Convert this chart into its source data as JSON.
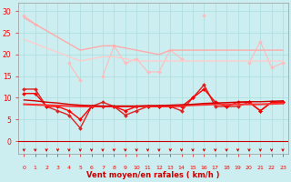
{
  "x": [
    0,
    1,
    2,
    3,
    4,
    5,
    6,
    7,
    8,
    9,
    10,
    11,
    12,
    13,
    14,
    15,
    16,
    17,
    18,
    19,
    20,
    21,
    22,
    23
  ],
  "series": [
    {
      "color": "#ffbbbb",
      "values": [
        29,
        27,
        null,
        null,
        18,
        14,
        null,
        15,
        22,
        18,
        19,
        16,
        16,
        21,
        19,
        null,
        29,
        null,
        null,
        null,
        18,
        23,
        17,
        18
      ],
      "marker": "D",
      "markersize": 2.0,
      "linewidth": 0.8,
      "linestyle": "-"
    },
    {
      "color": "#ffaaaa",
      "values": [
        28.5,
        27.0,
        25.5,
        24.0,
        22.5,
        21.0,
        21.5,
        22.0,
        22.0,
        21.5,
        21.0,
        20.5,
        20.0,
        21.0,
        21.0,
        21.0,
        21.0,
        21.0,
        21.0,
        21.0,
        21.0,
        21.0,
        21.0,
        21.0
      ],
      "marker": null,
      "markersize": 0,
      "linewidth": 1.0,
      "linestyle": "-"
    },
    {
      "color": "#ffcccc",
      "values": [
        23.5,
        22.5,
        21.5,
        20.5,
        19.5,
        18.5,
        19.0,
        19.5,
        19.5,
        19.0,
        18.5,
        18.5,
        18.5,
        18.5,
        18.5,
        18.5,
        18.5,
        18.5,
        18.5,
        18.5,
        18.5,
        18.5,
        18.5,
        18.5
      ],
      "marker": null,
      "markersize": 0,
      "linewidth": 1.0,
      "linestyle": "-"
    },
    {
      "color": "#dd2222",
      "values": [
        12,
        12,
        8,
        7,
        6,
        3,
        8,
        9,
        8,
        6,
        7,
        8,
        8,
        8,
        7,
        10,
        13,
        8,
        8,
        8,
        9,
        7,
        9,
        9
      ],
      "marker": "D",
      "markersize": 2.0,
      "linewidth": 1.0,
      "linestyle": "-"
    },
    {
      "color": "#ff0000",
      "values": [
        11,
        11,
        8,
        8,
        7,
        5,
        8,
        8,
        8,
        7,
        8,
        8,
        8,
        8,
        8,
        10,
        12,
        9,
        8,
        9,
        9,
        7,
        9,
        9
      ],
      "marker": "D",
      "markersize": 2.0,
      "linewidth": 1.0,
      "linestyle": "-"
    },
    {
      "color": "#ff3333",
      "values": [
        8.5,
        8.4,
        8.3,
        8.2,
        8.1,
        8.0,
        8.0,
        8.0,
        8.0,
        8.0,
        8.0,
        8.0,
        8.1,
        8.1,
        8.2,
        8.3,
        8.4,
        8.5,
        8.5,
        8.5,
        8.5,
        8.5,
        8.6,
        8.7
      ],
      "marker": null,
      "markersize": 0,
      "linewidth": 1.5,
      "linestyle": "-"
    },
    {
      "color": "#cc0000",
      "values": [
        9.5,
        9.3,
        9.0,
        8.8,
        8.5,
        8.3,
        8.2,
        8.1,
        8.1,
        8.1,
        8.1,
        8.2,
        8.2,
        8.3,
        8.4,
        8.5,
        8.7,
        8.8,
        8.9,
        9.0,
        9.1,
        9.1,
        9.2,
        9.3
      ],
      "marker": null,
      "markersize": 0,
      "linewidth": 1.0,
      "linestyle": "-"
    }
  ],
  "xlabel": "Vent moyen/en rafales ( km/h )",
  "ylim": [
    -3,
    32
  ],
  "xlim": [
    -0.5,
    23.5
  ],
  "yticks": [
    0,
    5,
    10,
    15,
    20,
    25,
    30
  ],
  "xticks": [
    0,
    1,
    2,
    3,
    4,
    5,
    6,
    7,
    8,
    9,
    10,
    11,
    12,
    13,
    14,
    15,
    16,
    17,
    18,
    19,
    20,
    21,
    22,
    23
  ],
  "bg_color": "#cceef0",
  "grid_color": "#aadddd",
  "tick_color": "#ff0000",
  "label_color": "#cc0000",
  "arrow_color": "#dd0000"
}
